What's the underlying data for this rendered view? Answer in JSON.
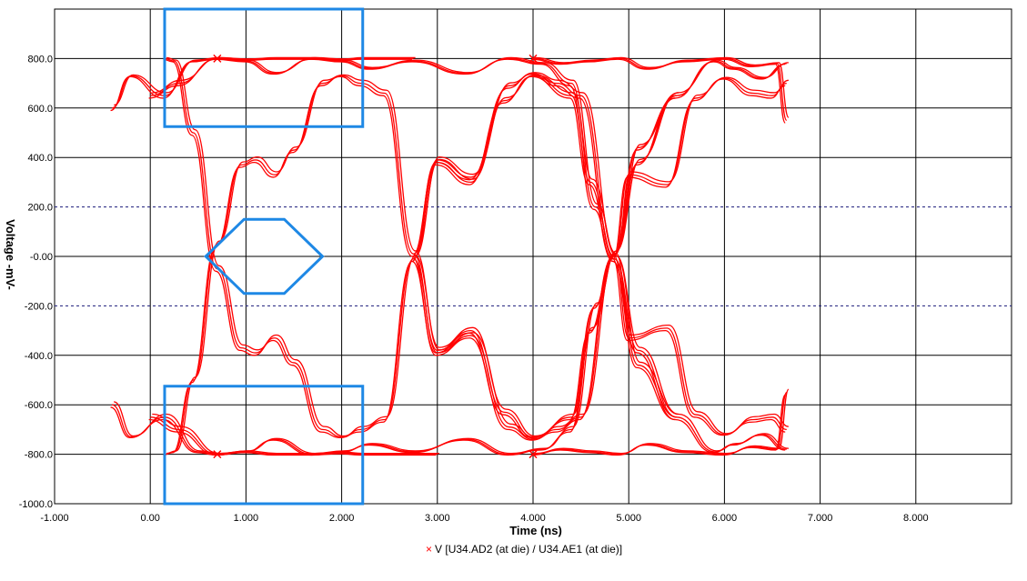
{
  "chart_data": {
    "type": "line",
    "title": "",
    "xlabel": "Time  (ns)",
    "ylabel": "Voltage  -mV-",
    "xlim": [
      -1.0,
      9.0
    ],
    "ylim": [
      -1000,
      1000
    ],
    "x_ticks": [
      "-1.000",
      "0.00",
      "1.000",
      "2.000",
      "3.000",
      "4.000",
      "5.000",
      "6.000",
      "7.000",
      "8.000"
    ],
    "y_ticks": [
      "800.0",
      "600.0",
      "400.0",
      "200.0",
      "-0.00",
      "-200.0",
      "-400.0",
      "-600.0",
      "-800.0",
      "-1000.0"
    ],
    "threshold_lines_mv": [
      200,
      -200
    ],
    "grid": true,
    "legend_position": "bottom-center",
    "series": [
      {
        "name": "V [U34.AD2 (at die) / U34.AE1 (at die)]",
        "color": "#ff0000",
        "traces": [
          {
            "x": [
              -0.4,
              -0.2,
              0.15,
              0.45,
              0.7,
              1.0,
              1.3,
              1.7,
              2.0,
              2.2,
              2.45,
              2.75
            ],
            "y": [
              600,
              730,
              650,
              790,
              800,
              795,
              800,
              800,
              795,
              800,
              800,
              800
            ]
          },
          {
            "x": [
              -0.4,
              -0.2,
              0.15,
              0.5,
              0.7,
              1.0,
              1.3,
              1.7,
              2.0,
              2.2,
              2.4,
              3.0
            ],
            "y": [
              -600,
              -730,
              -650,
              -790,
              -800,
              -790,
              -800,
              -800,
              -795,
              -800,
              -800,
              -800
            ]
          },
          {
            "x": [
              0.15,
              0.25,
              0.45,
              0.7,
              0.95,
              1.1,
              1.3,
              1.5,
              1.8,
              2.0,
              2.2,
              2.45,
              2.75,
              3.0,
              3.35,
              3.75,
              4.0,
              4.25,
              4.5,
              4.85,
              5.1,
              5.5
            ],
            "y": [
              800,
              790,
              500,
              -50,
              -370,
              -390,
              -330,
              -430,
              -700,
              -730,
              -700,
              -660,
              -10,
              390,
              320,
              690,
              740,
              700,
              650,
              -10,
              -380,
              -650
            ]
          },
          {
            "x": [
              0.15,
              0.25,
              0.45,
              0.7,
              0.95,
              1.1,
              1.3,
              1.5,
              1.8,
              2.0,
              2.2,
              2.45,
              2.75,
              3.0,
              3.35,
              3.75,
              4.0,
              4.25,
              4.5,
              4.85,
              5.1,
              5.5
            ],
            "y": [
              -800,
              -790,
              -500,
              50,
              370,
              390,
              330,
              430,
              700,
              730,
              700,
              660,
              10,
              -390,
              -320,
              -690,
              -740,
              -700,
              -650,
              10,
              380,
              650
            ]
          },
          {
            "x": [
              0.0,
              0.3,
              0.7,
              1.0,
              1.3,
              1.7,
              2.0,
              2.3,
              2.75,
              3.3,
              3.75,
              4.1,
              4.4,
              4.65,
              4.85,
              5.1,
              5.5,
              5.9,
              6.1,
              6.4,
              6.65
            ],
            "y": [
              650,
              700,
              800,
              790,
              740,
              800,
              790,
              760,
              790,
              740,
              800,
              780,
              700,
              200,
              -10,
              -440,
              -650,
              -790,
              -760,
              -720,
              -780
            ]
          },
          {
            "x": [
              0.0,
              0.3,
              0.7,
              1.0,
              1.3,
              1.7,
              2.0,
              2.3,
              2.75,
              3.3,
              3.75,
              4.1,
              4.4,
              4.65,
              4.85,
              5.1,
              5.5,
              5.9,
              6.1,
              6.4,
              6.65
            ],
            "y": [
              -650,
              -700,
              -800,
              -790,
              -740,
              -800,
              -790,
              -760,
              -790,
              -740,
              -800,
              -780,
              -700,
              -200,
              10,
              440,
              650,
              790,
              760,
              720,
              780
            ]
          },
          {
            "x": [
              2.75,
              3.0,
              3.35,
              3.7,
              4.0,
              4.4,
              4.6,
              4.85,
              5.0,
              5.4,
              5.7,
              6.0,
              6.3,
              6.5,
              6.65
            ],
            "y": [
              -10,
              -380,
              -300,
              -630,
              -730,
              -650,
              -300,
              0,
              330,
              290,
              640,
              720,
              660,
              650,
              700
            ]
          },
          {
            "x": [
              2.75,
              3.0,
              3.35,
              3.7,
              4.0,
              4.4,
              4.6,
              4.85,
              5.0,
              5.4,
              5.7,
              6.0,
              6.3,
              6.5,
              6.65
            ],
            "y": [
              10,
              380,
              300,
              630,
              730,
              650,
              300,
              0,
              -330,
              -290,
              -640,
              -720,
              -660,
              -650,
              -700
            ]
          },
          {
            "x": [
              4.0,
              4.3,
              4.6,
              4.9,
              5.2,
              5.6,
              6.0,
              6.3,
              6.55,
              6.65
            ],
            "y": [
              800,
              780,
              790,
              800,
              760,
              790,
              800,
              770,
              780,
              550
            ]
          },
          {
            "x": [
              4.0,
              4.3,
              4.6,
              4.9,
              5.2,
              5.6,
              6.0,
              6.3,
              6.55,
              6.65
            ],
            "y": [
              -800,
              -780,
              -790,
              -800,
              -760,
              -790,
              -800,
              -770,
              -780,
              -550
            ]
          }
        ]
      }
    ],
    "masks": [
      {
        "name": "upper-mask",
        "points": [
          [
            0.15,
            1000
          ],
          [
            0.15,
            525
          ],
          [
            2.22,
            525
          ],
          [
            2.22,
            1000
          ]
        ]
      },
      {
        "name": "lower-mask",
        "points": [
          [
            0.15,
            -1000
          ],
          [
            0.15,
            -525
          ],
          [
            2.22,
            -525
          ],
          [
            2.22,
            -1000
          ]
        ]
      },
      {
        "name": "eye-mask",
        "points": [
          [
            0.58,
            0
          ],
          [
            0.98,
            150
          ],
          [
            1.4,
            150
          ],
          [
            1.8,
            0
          ],
          [
            1.4,
            -150
          ],
          [
            0.98,
            -150
          ]
        ]
      }
    ],
    "markers": [
      {
        "x": 0.7,
        "y": 800
      },
      {
        "x": 0.7,
        "y": -800
      },
      {
        "x": 4.0,
        "y": 800
      },
      {
        "x": 4.0,
        "y": -800
      }
    ]
  },
  "legend": {
    "marker": "×",
    "label": "V [U34.AD2 (at die) / U34.AE1 (at die)]"
  }
}
